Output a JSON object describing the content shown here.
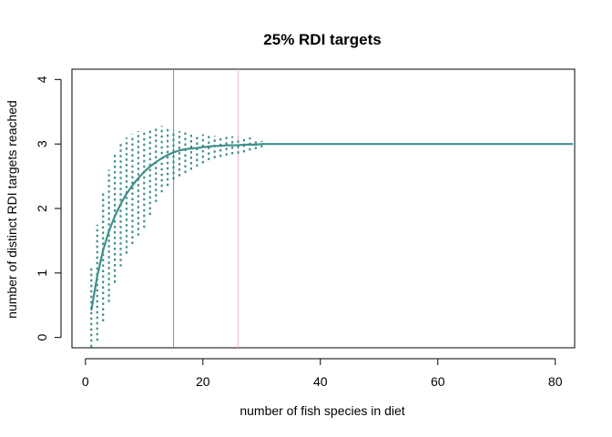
{
  "chart_data": {
    "type": "line",
    "title": "25% RDI targets",
    "xlabel": "number of fish species in diet",
    "ylabel": "number of distinct RDI targets reached",
    "xlim": [
      -2.3,
      83.3
    ],
    "ylim": [
      -0.16,
      4.16
    ],
    "x_ticks": [
      0,
      20,
      40,
      60,
      80
    ],
    "y_ticks": [
      0,
      1,
      2,
      3,
      4
    ],
    "grid": false,
    "legend": "none",
    "series": [
      {
        "x": [
          1,
          2,
          3,
          4,
          5,
          6,
          7,
          8,
          9,
          10,
          11,
          12,
          13,
          14,
          15,
          16,
          17,
          18,
          19,
          20,
          21,
          22,
          23,
          24,
          25,
          26,
          27,
          28,
          29,
          30,
          31,
          32,
          35,
          40,
          50,
          60,
          70,
          80,
          83
        ],
        "y": [
          0.42,
          0.95,
          1.35,
          1.65,
          1.88,
          2.07,
          2.23,
          2.36,
          2.47,
          2.57,
          2.65,
          2.72,
          2.78,
          2.83,
          2.87,
          2.9,
          2.92,
          2.93,
          2.94,
          2.95,
          2.96,
          2.97,
          2.97,
          2.98,
          2.98,
          2.98,
          2.99,
          2.99,
          2.99,
          3.0,
          3.0,
          3.0,
          3.0,
          3.0,
          3.0,
          3.0,
          3.0,
          3.0,
          3.0
        ],
        "color": "#3f8f8b"
      }
    ],
    "error_bars": {
      "x": [
        1,
        2,
        3,
        4,
        5,
        6,
        7,
        8,
        9,
        10,
        11,
        12,
        13,
        14,
        15,
        16,
        17,
        18,
        19,
        20,
        21,
        22,
        23,
        24,
        25,
        26,
        27,
        28,
        29,
        30
      ],
      "low": [
        -0.15,
        -0.05,
        0.25,
        0.55,
        0.85,
        1.1,
        1.3,
        1.45,
        1.58,
        1.7,
        1.9,
        2.1,
        2.25,
        2.35,
        2.45,
        2.5,
        2.55,
        2.6,
        2.65,
        2.7,
        2.75,
        2.78,
        2.8,
        2.82,
        2.84,
        2.85,
        2.87,
        2.9,
        2.92,
        2.95
      ],
      "high": [
        1.1,
        1.75,
        2.25,
        2.6,
        2.85,
        3.0,
        3.1,
        3.15,
        3.2,
        3.22,
        3.25,
        3.27,
        3.28,
        3.25,
        3.22,
        3.2,
        3.2,
        3.18,
        3.15,
        3.15,
        3.14,
        3.13,
        3.12,
        3.12,
        3.12,
        3.11,
        3.1,
        3.1,
        3.08,
        3.05
      ],
      "color": "#3f8f8b",
      "style": "dotted"
    },
    "vlines": [
      {
        "x": 15,
        "color": "#5f9ea0"
      },
      {
        "x": 26,
        "color": "#f4b6d2"
      }
    ]
  }
}
